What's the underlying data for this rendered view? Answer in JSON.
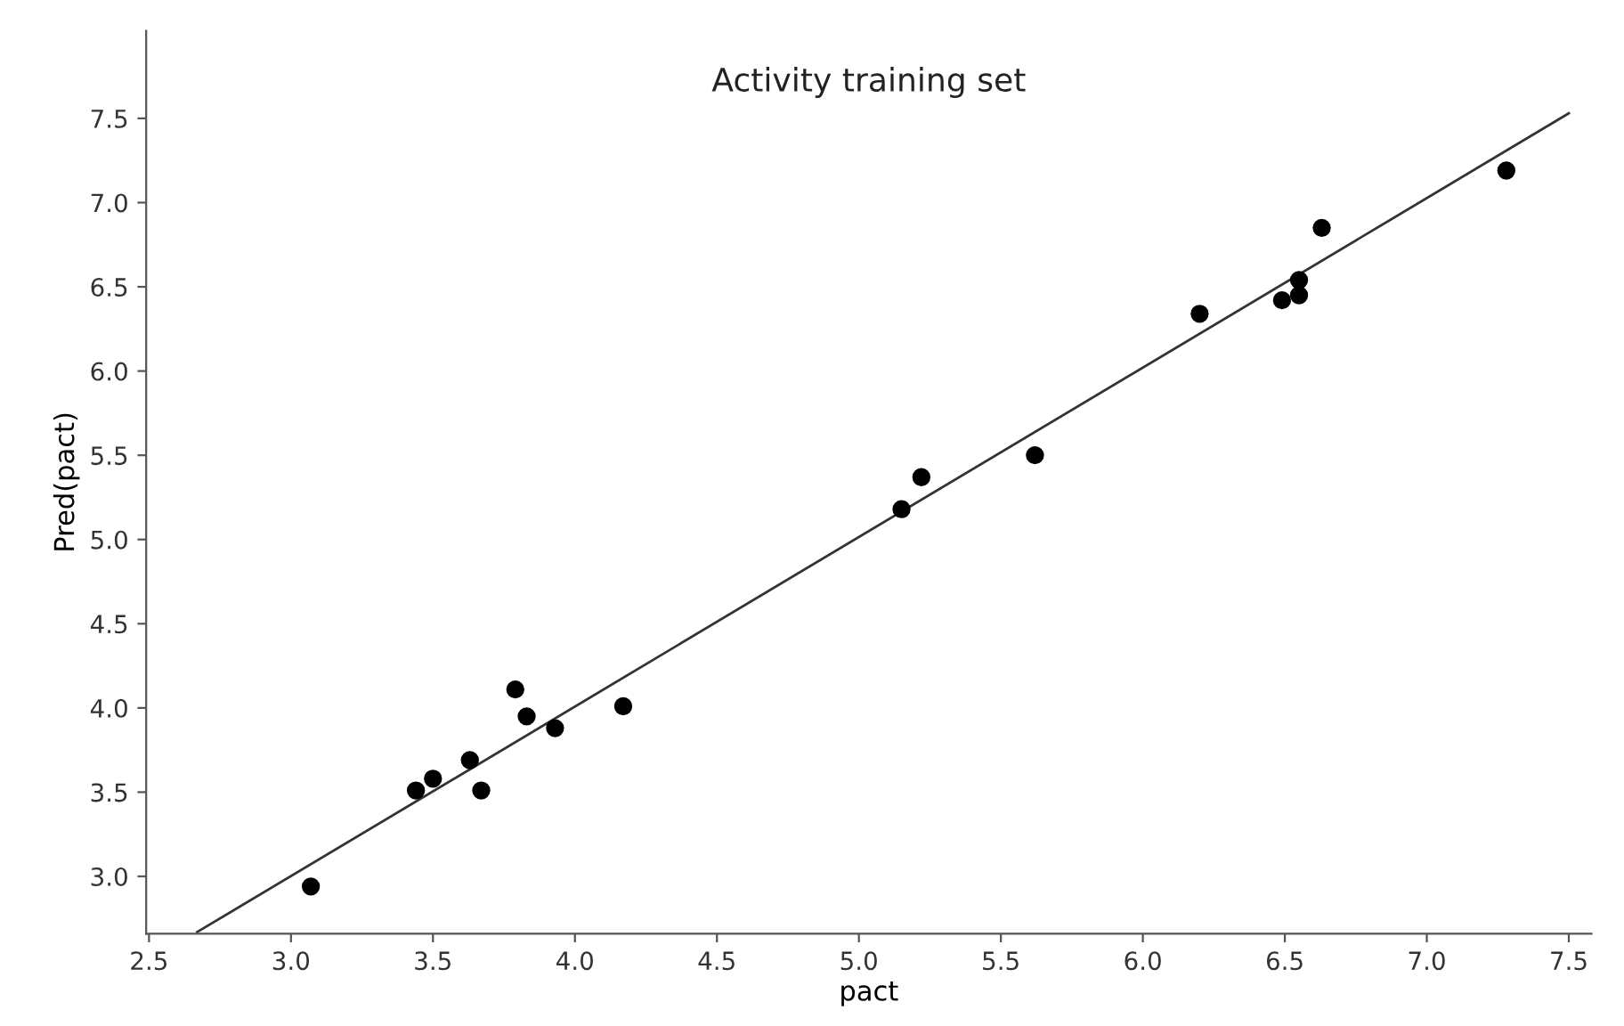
{
  "chart_data": {
    "type": "scatter",
    "title": "Activity training set",
    "xlabel": "pact",
    "ylabel": "Pred(pact)",
    "xlim": [
      2.49,
      7.58
    ],
    "ylim": [
      2.66,
      8.02
    ],
    "xticks": [
      {
        "value": 2.5,
        "label": "2.5"
      },
      {
        "value": 3.0,
        "label": "3.0"
      },
      {
        "value": 3.5,
        "label": "3.5"
      },
      {
        "value": 4.0,
        "label": "4.0"
      },
      {
        "value": 4.5,
        "label": "4.5"
      },
      {
        "value": 5.0,
        "label": "5.0"
      },
      {
        "value": 5.5,
        "label": "5.5"
      },
      {
        "value": 6.0,
        "label": "6.0"
      },
      {
        "value": 6.5,
        "label": "6.5"
      },
      {
        "value": 7.0,
        "label": "7.0"
      },
      {
        "value": 7.5,
        "label": "7.5"
      }
    ],
    "yticks": [
      {
        "value": 3.0,
        "label": "3.0"
      },
      {
        "value": 3.5,
        "label": "3.5"
      },
      {
        "value": 4.0,
        "label": "4.0"
      },
      {
        "value": 4.5,
        "label": "4.5"
      },
      {
        "value": 5.0,
        "label": "5.0"
      },
      {
        "value": 5.5,
        "label": "5.5"
      },
      {
        "value": 6.0,
        "label": "6.0"
      },
      {
        "value": 6.5,
        "label": "6.5"
      },
      {
        "value": 7.0,
        "label": "7.0"
      },
      {
        "value": 7.5,
        "label": "7.5"
      }
    ],
    "grid": false,
    "series": [
      {
        "marker": "circle",
        "color": "#000000",
        "x": [
          3.07,
          3.44,
          3.5,
          3.63,
          3.67,
          3.79,
          3.83,
          3.93,
          4.17,
          5.15,
          5.22,
          5.62,
          6.2,
          6.49,
          6.55,
          6.55,
          6.63,
          7.28
        ],
        "values": [
          2.94,
          3.51,
          3.58,
          3.69,
          3.51,
          4.11,
          3.95,
          3.88,
          4.01,
          5.18,
          5.37,
          5.5,
          6.34,
          6.42,
          6.45,
          6.54,
          6.85,
          7.19
        ]
      },
      {
        "type": "line",
        "color": "#333333",
        "x": [
          2.67,
          7.5
        ],
        "values": [
          2.67,
          7.53
        ]
      }
    ]
  }
}
